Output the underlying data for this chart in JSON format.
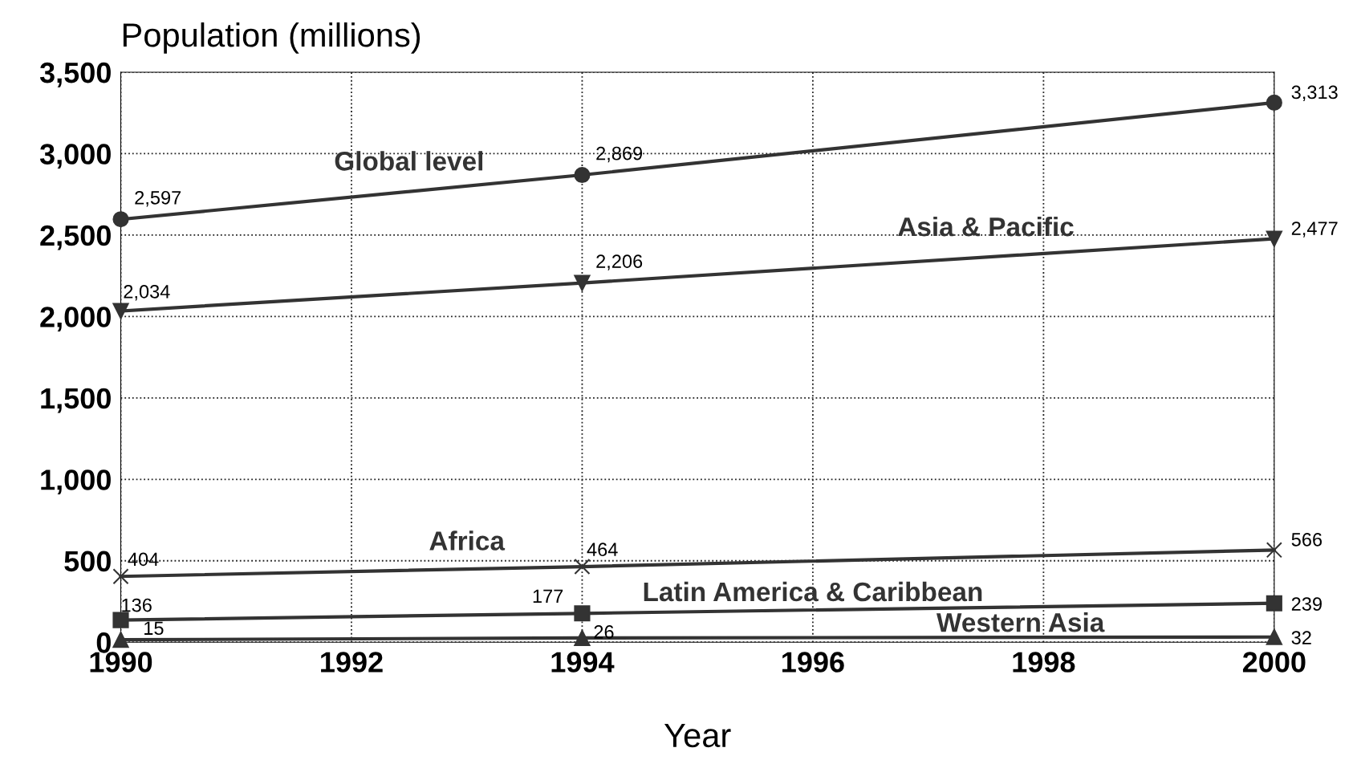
{
  "chart_data": {
    "type": "line",
    "ylabel": "Population (millions)",
    "xlabel": "Year",
    "x": [
      1990,
      1994,
      2000
    ],
    "series": [
      {
        "name": "Global level",
        "color": "#333333",
        "marker": "circle",
        "values": [
          2597,
          2869,
          3313
        ],
        "value_labels": [
          "2,597",
          "2,869",
          "3,313"
        ]
      },
      {
        "name": "Asia & Pacific",
        "color": "#333333",
        "marker": "triangle_down",
        "values": [
          2034,
          2206,
          2477
        ],
        "value_labels": [
          "2,034",
          "2,206",
          "2,477"
        ]
      },
      {
        "name": "Africa",
        "color": "#333333",
        "marker": "cross",
        "values": [
          404,
          464,
          566
        ],
        "value_labels": [
          "404",
          "464",
          "566"
        ]
      },
      {
        "name": "Latin America & Caribbean",
        "color": "#333333",
        "marker": "square",
        "values": [
          136,
          177,
          239
        ],
        "value_labels": [
          "136",
          "177",
          "239"
        ]
      },
      {
        "name": "Western Asia",
        "color": "#333333",
        "marker": "triangle",
        "values": [
          15,
          26,
          32
        ],
        "value_labels": [
          "15",
          "26",
          "32"
        ]
      }
    ],
    "xlim": [
      1990,
      2000
    ],
    "xticks": [
      1990,
      1992,
      1994,
      1996,
      1998,
      2000
    ],
    "ylim": [
      0,
      3500
    ],
    "yticks": [
      0,
      {
        "value": 500,
        "label": "500"
      },
      {
        "value": 1000,
        "label": "1,000"
      },
      {
        "value": 1500,
        "label": "1,500"
      },
      {
        "value": 2000,
        "label": "2,000"
      },
      {
        "value": 2500,
        "label": "2,500"
      },
      {
        "value": 3000,
        "label": "3,000"
      },
      {
        "value": 3500,
        "label": "3,500"
      }
    ],
    "grid": true,
    "line_style": "solid"
  }
}
